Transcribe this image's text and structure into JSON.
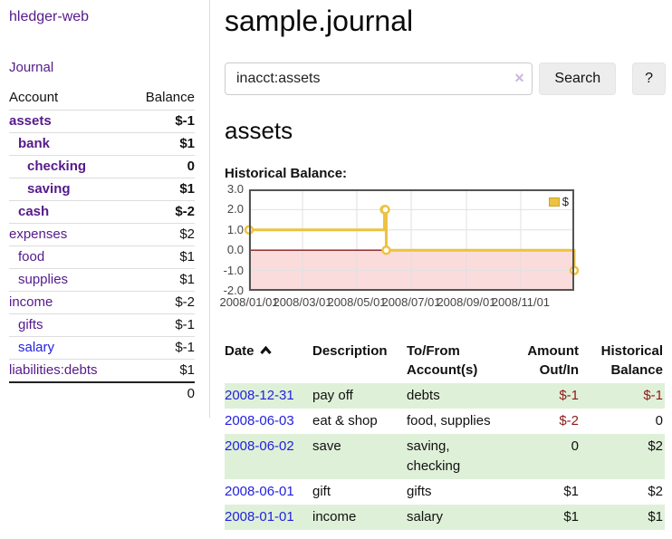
{
  "sidebar": {
    "brand": "hledger-web",
    "journal_link": "Journal",
    "accounts_table": {
      "headers": {
        "account": "Account",
        "balance": "Balance"
      },
      "rows": [
        {
          "name": "assets",
          "balance": "$-1",
          "indent": 0,
          "emph": true
        },
        {
          "name": "bank",
          "balance": "$1",
          "indent": 1,
          "emph": true
        },
        {
          "name": "checking",
          "balance": "0",
          "indent": 2,
          "emph": true
        },
        {
          "name": "saving",
          "balance": "$1",
          "indent": 2,
          "emph": true
        },
        {
          "name": "cash",
          "balance": "$-2",
          "indent": 1,
          "emph": true
        },
        {
          "name": "expenses",
          "balance": "$2",
          "indent": 0,
          "emph": false
        },
        {
          "name": "food",
          "balance": "$1",
          "indent": 1,
          "emph": false
        },
        {
          "name": "supplies",
          "balance": "$1",
          "indent": 1,
          "emph": false
        },
        {
          "name": "income",
          "balance": "$-2",
          "indent": 0,
          "emph": false
        },
        {
          "name": "gifts",
          "balance": "$-1",
          "indent": 1,
          "emph": false
        },
        {
          "name": "salary",
          "balance": "$-1",
          "indent": 1,
          "emph": false,
          "unvisited": true
        },
        {
          "name": "liabilities:debts",
          "balance": "$1",
          "indent": 0,
          "emph": false
        }
      ],
      "total": "0"
    }
  },
  "header": {
    "title": "sample.journal"
  },
  "search": {
    "value": "inacct:assets",
    "clear_icon": "✕",
    "button_label": "Search",
    "help_label": "?"
  },
  "main": {
    "account_heading": "assets",
    "section_label": "Historical Balance:"
  },
  "chart_data": {
    "type": "line",
    "step": true,
    "title": "Historical Balance",
    "series": [
      {
        "name": "$",
        "color": "#edc240",
        "points": [
          [
            "2008-01-01",
            1
          ],
          [
            "2008-06-01",
            2
          ],
          [
            "2008-06-02",
            2
          ],
          [
            "2008-06-03",
            0
          ],
          [
            "2008-12-31",
            -1
          ]
        ]
      }
    ],
    "x_range": [
      "2008-01-01",
      "2008-12-31"
    ],
    "ylim": [
      -2,
      3
    ],
    "y_ticks": [
      "3.0",
      "2.0",
      "1.0",
      "0.0",
      "-1.0",
      "-2.0"
    ],
    "x_ticks": [
      "2008/01/01",
      "2008/03/01",
      "2008/05/01",
      "2008/07/01",
      "2008/09/01",
      "2008/11/01"
    ],
    "grid": true,
    "legend": {
      "label": "$",
      "position": "top-right"
    },
    "negative_region_color": "#fbdcdc",
    "zero_line_color": "#8b1a1a",
    "border_color": "#545454",
    "grid_color": "#e0e0e0"
  },
  "register_table": {
    "headers": {
      "date": "Date",
      "description": "Description",
      "accounts": "To/From Account(s)",
      "amount": "Amount Out/In",
      "balance": "Historical Balance"
    },
    "sort": {
      "column": "date",
      "direction": "asc"
    },
    "rows": [
      {
        "date": "2008-12-31",
        "description": "pay off",
        "accounts": "debts",
        "amount": "$-1",
        "balance": "$-1"
      },
      {
        "date": "2008-06-03",
        "description": "eat & shop",
        "accounts": "food, supplies",
        "amount": "$-2",
        "balance": "0"
      },
      {
        "date": "2008-06-02",
        "description": "save",
        "accounts": "saving, checking",
        "amount": "0",
        "balance": "$2"
      },
      {
        "date": "2008-06-01",
        "description": "gift",
        "accounts": "gifts",
        "amount": "$1",
        "balance": "$2"
      },
      {
        "date": "2008-01-01",
        "description": "income",
        "accounts": "salary",
        "amount": "$1",
        "balance": "$1"
      }
    ]
  },
  "colors": {
    "link_purple": "#551a8b",
    "link_blue": "#2222dd",
    "negative": "#8b1a1a",
    "negative_dim": "#c08080",
    "row_green": "#dff0d8",
    "chart_line": "#edc240"
  }
}
